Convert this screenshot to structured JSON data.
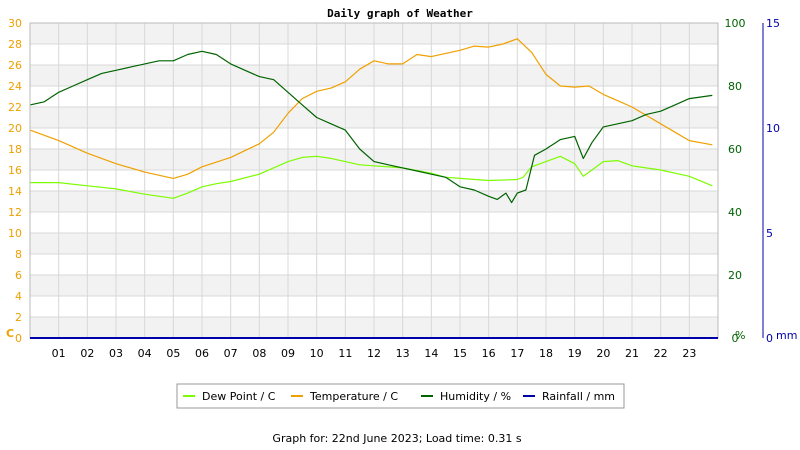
{
  "title": "Daily graph of Weather",
  "footer": "Graph for: 22nd June 2023; Load time: 0.31 s",
  "colors": {
    "dew_point": "#7cfc00",
    "temperature": "#f0a000",
    "humidity": "#006400",
    "rainfall": "#0000aa",
    "grid_band": "#f2f2f2",
    "grid_line": "#d8d8d8"
  },
  "chart_data": {
    "type": "line",
    "grid": true,
    "legend_placement": "bottom",
    "x_ticks": [
      "01",
      "02",
      "03",
      "04",
      "05",
      "06",
      "07",
      "08",
      "09",
      "10",
      "11",
      "12",
      "13",
      "14",
      "15",
      "16",
      "17",
      "18",
      "19",
      "20",
      "21",
      "22",
      "23"
    ],
    "xlim": [
      0,
      24
    ],
    "axes": {
      "left": {
        "unit_label": "C",
        "ylim": [
          0,
          30
        ],
        "ticks": [
          "0",
          "2",
          "4",
          "6",
          "8",
          "10",
          "12",
          "14",
          "16",
          "18",
          "20",
          "22",
          "24",
          "26",
          "28",
          "30"
        ]
      },
      "right1": {
        "unit_label": "%",
        "ylim": [
          0,
          100
        ],
        "ticks": [
          "0",
          "20",
          "40",
          "60",
          "80",
          "100"
        ]
      },
      "right2": {
        "unit_label": "mm",
        "ylim": [
          0,
          15
        ],
        "ticks": [
          "0",
          "5",
          "10",
          "15"
        ]
      }
    },
    "series": [
      {
        "name": "Dew Point / C",
        "axis": "left",
        "x": [
          0,
          1,
          2,
          3,
          4,
          5,
          5.5,
          6,
          6.5,
          7,
          8,
          9,
          9.5,
          10,
          10.5,
          11,
          11.5,
          12,
          13,
          14,
          14.5,
          15,
          16,
          17,
          17.2,
          17.5,
          18,
          18.5,
          19,
          19.3,
          19.6,
          20,
          20.5,
          21,
          22,
          23,
          23.8
        ],
        "y": [
          14.8,
          14.8,
          14.5,
          14.2,
          13.7,
          13.3,
          13.8,
          14.4,
          14.7,
          14.9,
          15.6,
          16.8,
          17.2,
          17.3,
          17.1,
          16.8,
          16.5,
          16.4,
          16.2,
          15.7,
          15.3,
          15.2,
          15.0,
          15.1,
          15.3,
          16.3,
          16.8,
          17.3,
          16.6,
          15.4,
          16.0,
          16.8,
          16.9,
          16.4,
          16.0,
          15.4,
          14.5
        ]
      },
      {
        "name": "Temperature / C",
        "axis": "left",
        "x": [
          0,
          1,
          2,
          3,
          4,
          5,
          5.5,
          6,
          7,
          8,
          8.5,
          9,
          9.5,
          10,
          10.5,
          11,
          11.5,
          12,
          12.5,
          13,
          13.5,
          14,
          14.5,
          15,
          15.5,
          16,
          16.5,
          17,
          17.5,
          18,
          18.5,
          19,
          19.5,
          20,
          20.5,
          21,
          21.5,
          22,
          22.5,
          23,
          23.8
        ],
        "y": [
          19.8,
          18.8,
          17.6,
          16.6,
          15.8,
          15.2,
          15.6,
          16.3,
          17.2,
          18.5,
          19.6,
          21.4,
          22.8,
          23.5,
          23.8,
          24.4,
          25.6,
          26.4,
          26.1,
          26.1,
          27.0,
          26.8,
          27.1,
          27.4,
          27.8,
          27.7,
          28.0,
          28.5,
          27.2,
          25.1,
          24.0,
          23.9,
          24.0,
          23.2,
          22.6,
          22.0,
          21.2,
          20.4,
          19.6,
          18.8,
          18.4
        ]
      },
      {
        "name": "Humidity / %",
        "axis": "right1",
        "x": [
          0,
          0.5,
          1,
          1.5,
          2,
          2.5,
          3,
          3.5,
          4,
          4.5,
          5,
          5.5,
          6,
          6.5,
          7,
          7.5,
          8,
          8.5,
          9,
          9.5,
          10,
          10.5,
          11,
          11.5,
          12,
          12.5,
          13,
          13.5,
          14,
          14.5,
          15,
          15.5,
          16,
          16.3,
          16.6,
          16.8,
          17,
          17.3,
          17.6,
          18,
          18.5,
          19,
          19.3,
          19.6,
          20,
          20.5,
          21,
          21.5,
          22,
          22.5,
          23,
          23.8
        ],
        "y": [
          74,
          75,
          78,
          80,
          82,
          84,
          85,
          86,
          87,
          88,
          88,
          90,
          91,
          90,
          87,
          85,
          83,
          82,
          78,
          74,
          70,
          68,
          66,
          60,
          56,
          55,
          54,
          53,
          52,
          51,
          48,
          47,
          45,
          44,
          46,
          43,
          46,
          47,
          58,
          60,
          63,
          64,
          57,
          62,
          67,
          68,
          69,
          71,
          72,
          74,
          76,
          77
        ]
      },
      {
        "name": "Rainfall / mm",
        "axis": "right2",
        "x": [
          0,
          24
        ],
        "y": [
          0,
          0
        ]
      }
    ]
  }
}
